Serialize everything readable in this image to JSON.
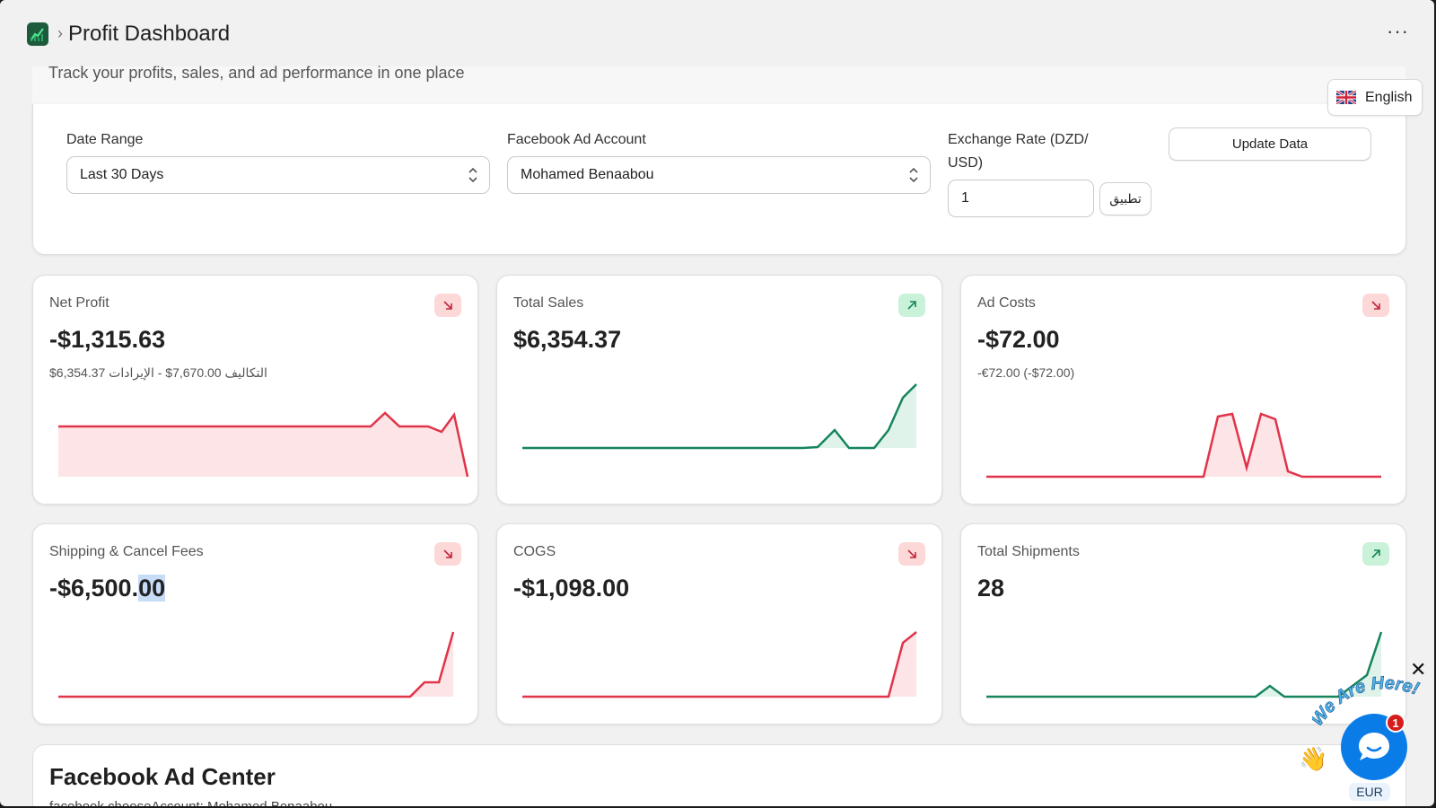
{
  "header": {
    "title": "Profit Dashboard",
    "more_label": "···",
    "subtitle": "Track your profits, sales, and ad performance in one place",
    "language": "English"
  },
  "filters": {
    "date_range_label": "Date Range",
    "date_range_value": "Last 30 Days",
    "ad_account_label": "Facebook Ad Account",
    "ad_account_value": "Mohamed Benaabou",
    "exchange_label": "Exchange Rate (DZD/ USD)",
    "exchange_value": "1",
    "apply_label": "تطبيق",
    "update_label": "Update Data"
  },
  "cards": [
    {
      "label": "Net Profit",
      "value": "-$1,315.63",
      "sub": "$6,354.37 التكاليف 7,670.00$ - الإيرادات",
      "trend": "down"
    },
    {
      "label": "Total Sales",
      "value": "$6,354.37",
      "sub": "",
      "trend": "up"
    },
    {
      "label": "Ad Costs",
      "value": "-$72.00",
      "sub": "-€72.00 (-$72.00)",
      "trend": "down"
    },
    {
      "label": "Shipping & Cancel Fees",
      "value_main": "-$6,500.",
      "value_hl": "00",
      "sub": "",
      "trend": "down"
    },
    {
      "label": "COGS",
      "value": "-$1,098.00",
      "sub": "",
      "trend": "down"
    },
    {
      "label": "Total Shipments",
      "value": "28",
      "sub": "",
      "trend": "up"
    }
  ],
  "colors": {
    "negative": "#e0344a",
    "positive": "#16855b",
    "negative_fill": "#fde4e6",
    "positive_fill": "#dff3ea"
  },
  "facebook": {
    "title": "Facebook Ad Center",
    "subtitle": "facebook.chooseAccount: Mohamed Benaabou"
  },
  "chat": {
    "badge": "1",
    "slogan": "We Are Here!",
    "currency": "EUR",
    "close": "✕"
  }
}
